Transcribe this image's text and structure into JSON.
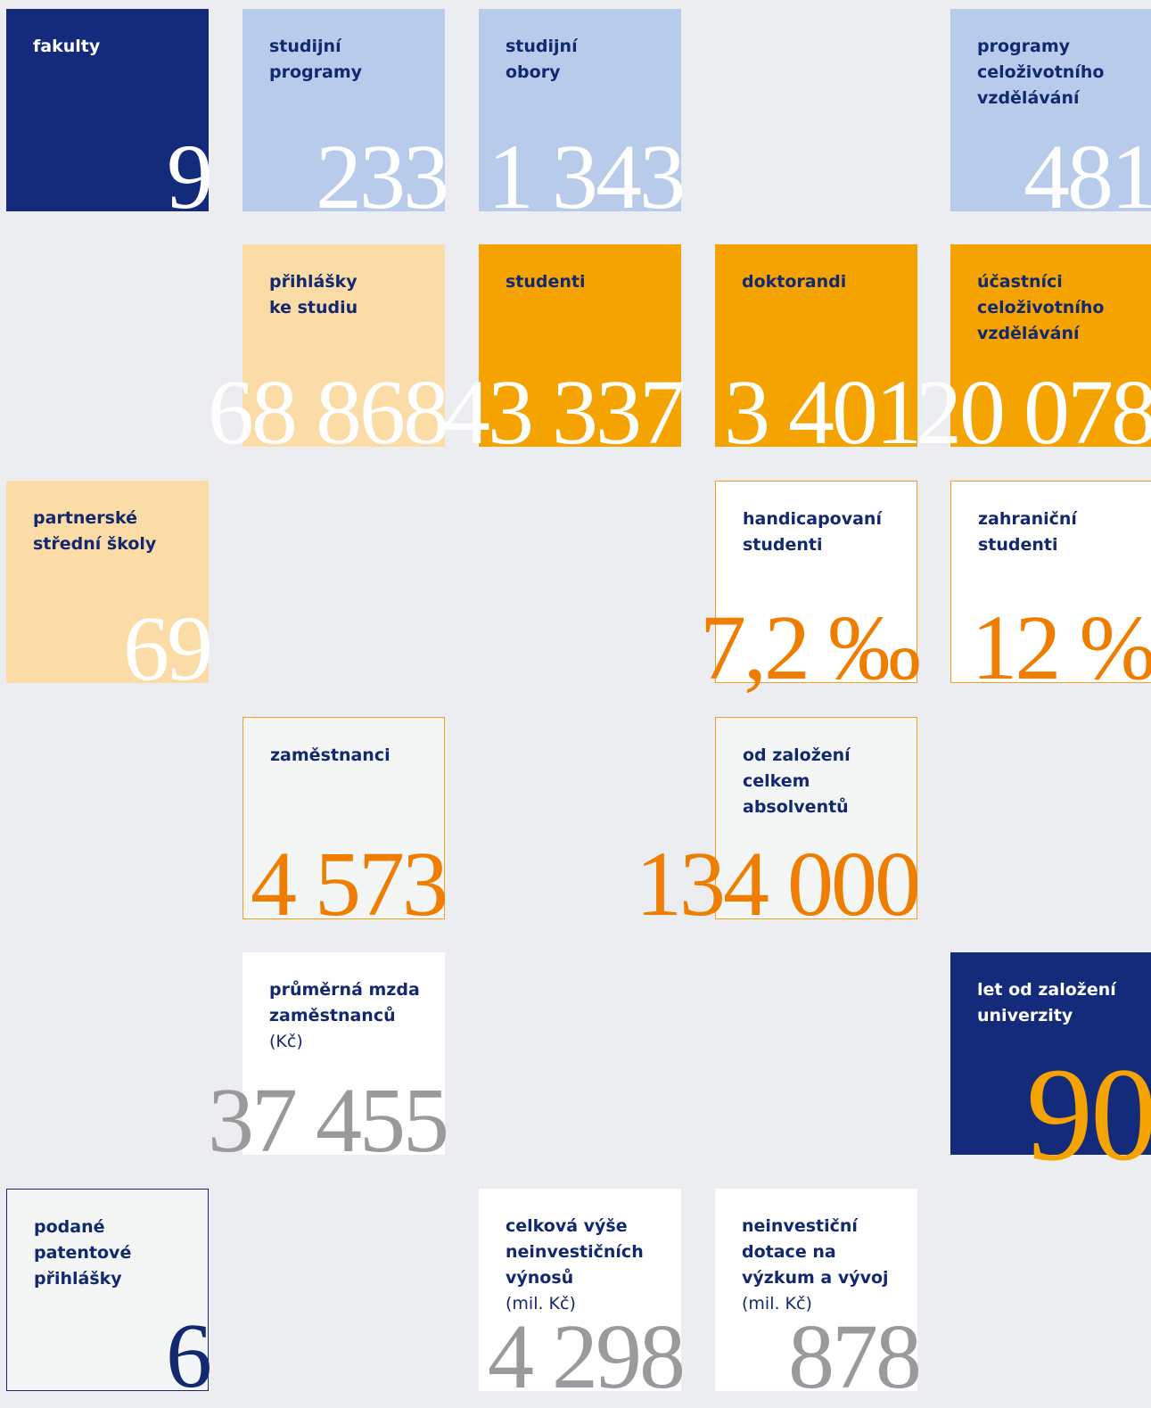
{
  "tiles": [
    {
      "label": "fakulty",
      "value": "9"
    },
    {
      "label": "studijní\nprogramy",
      "value": "233"
    },
    {
      "label": "studijní\nobory",
      "value": "1 343"
    },
    {
      "label": "programy\nceloživotního\nvzdělávání",
      "value": "481"
    },
    {
      "label": "přihlášky\nke studiu",
      "value": "68 868"
    },
    {
      "label": "studenti",
      "value": "43 337"
    },
    {
      "label": "doktorandi",
      "value": "3 401"
    },
    {
      "label": "účastníci\nceloživotního\nvzdělávání",
      "value": "20 078"
    },
    {
      "label": "partnerské\nstřední školy",
      "value": "69"
    },
    {
      "label": "handicapovaní\nstudenti",
      "value": "7,2 ‰"
    },
    {
      "label": "zahraniční\nstudenti",
      "value": "12 %"
    },
    {
      "label": "zaměstnanci",
      "value": "4 573"
    },
    {
      "label": "od založení\ncelkem\nabsolventů",
      "value": "134 000"
    },
    {
      "label": "průměrná mzda\nzaměstnanců",
      "unit": "(Kč)",
      "value": "37 455"
    },
    {
      "label": "let od založení\nuniverzity",
      "value": "90"
    },
    {
      "label": "podané\npatentové\npřihlášky",
      "value": "6"
    },
    {
      "label": "celková výše\nneinvestičních\nvýnosů",
      "unit": "(mil. Kč)",
      "value": "4 298"
    },
    {
      "label": "neinvestiční\ndotace na\nvýzkum a vývoj",
      "unit": "(mil. Kč)",
      "value": "878"
    }
  ]
}
